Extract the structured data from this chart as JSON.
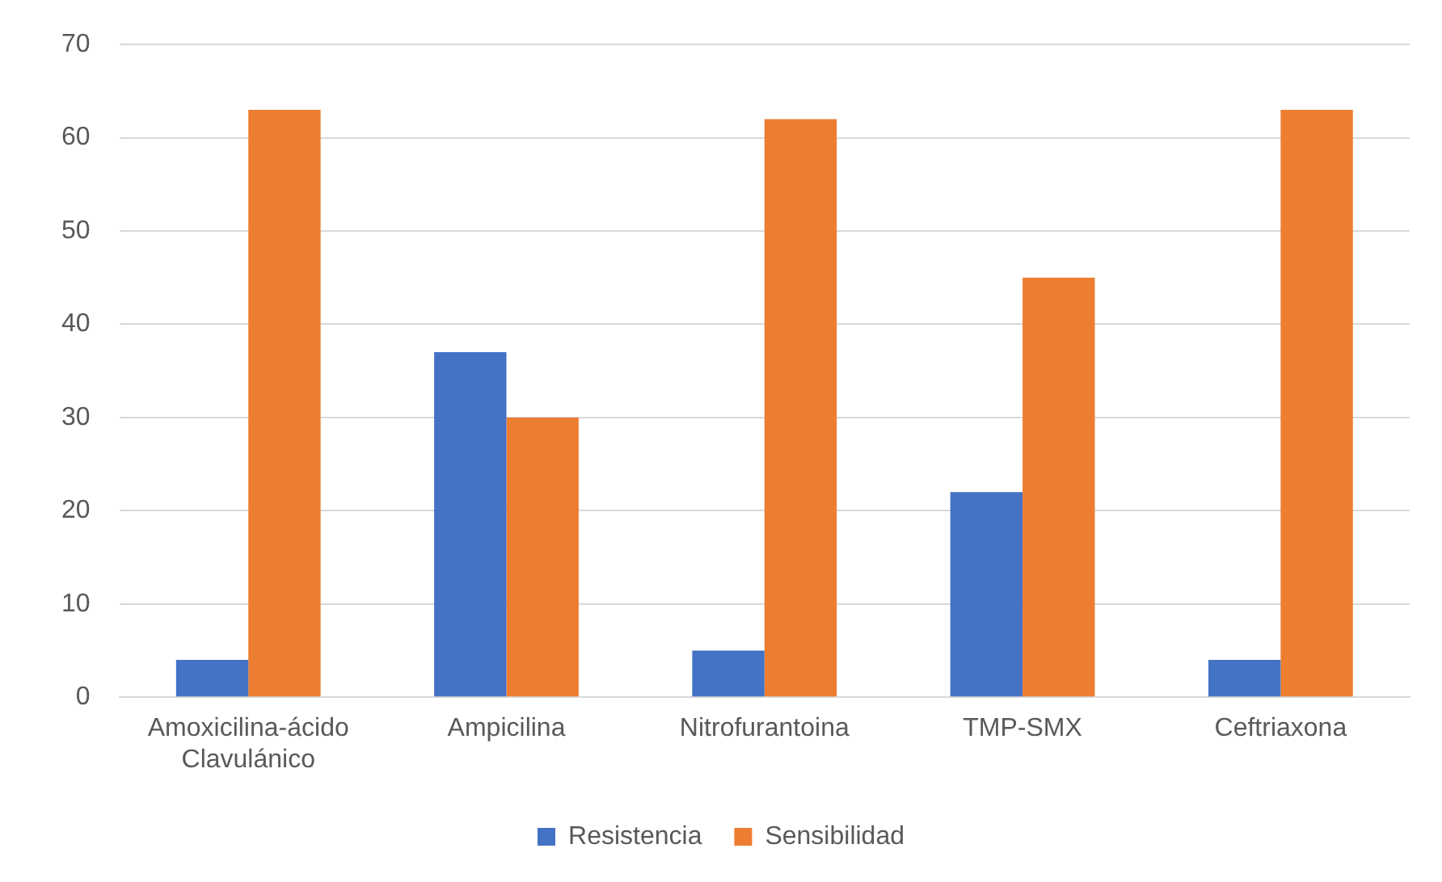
{
  "chart_data": {
    "type": "bar",
    "categories": [
      "Amoxicilina-ácido Clavulánico",
      "Ampicilina",
      "Nitrofurantoina",
      "TMP-SMX",
      "Ceftriaxona"
    ],
    "series": [
      {
        "name": "Resistencia",
        "color": "#4472c4",
        "values": [
          4,
          37,
          5,
          22,
          4
        ]
      },
      {
        "name": "Sensibilidad",
        "color": "#ed7d31",
        "values": [
          63,
          30,
          62,
          45,
          63
        ]
      }
    ],
    "ylim": [
      0,
      70
    ],
    "yticks": [
      0,
      10,
      20,
      30,
      40,
      50,
      60,
      70
    ],
    "grid": "y",
    "legend": "bottom"
  }
}
